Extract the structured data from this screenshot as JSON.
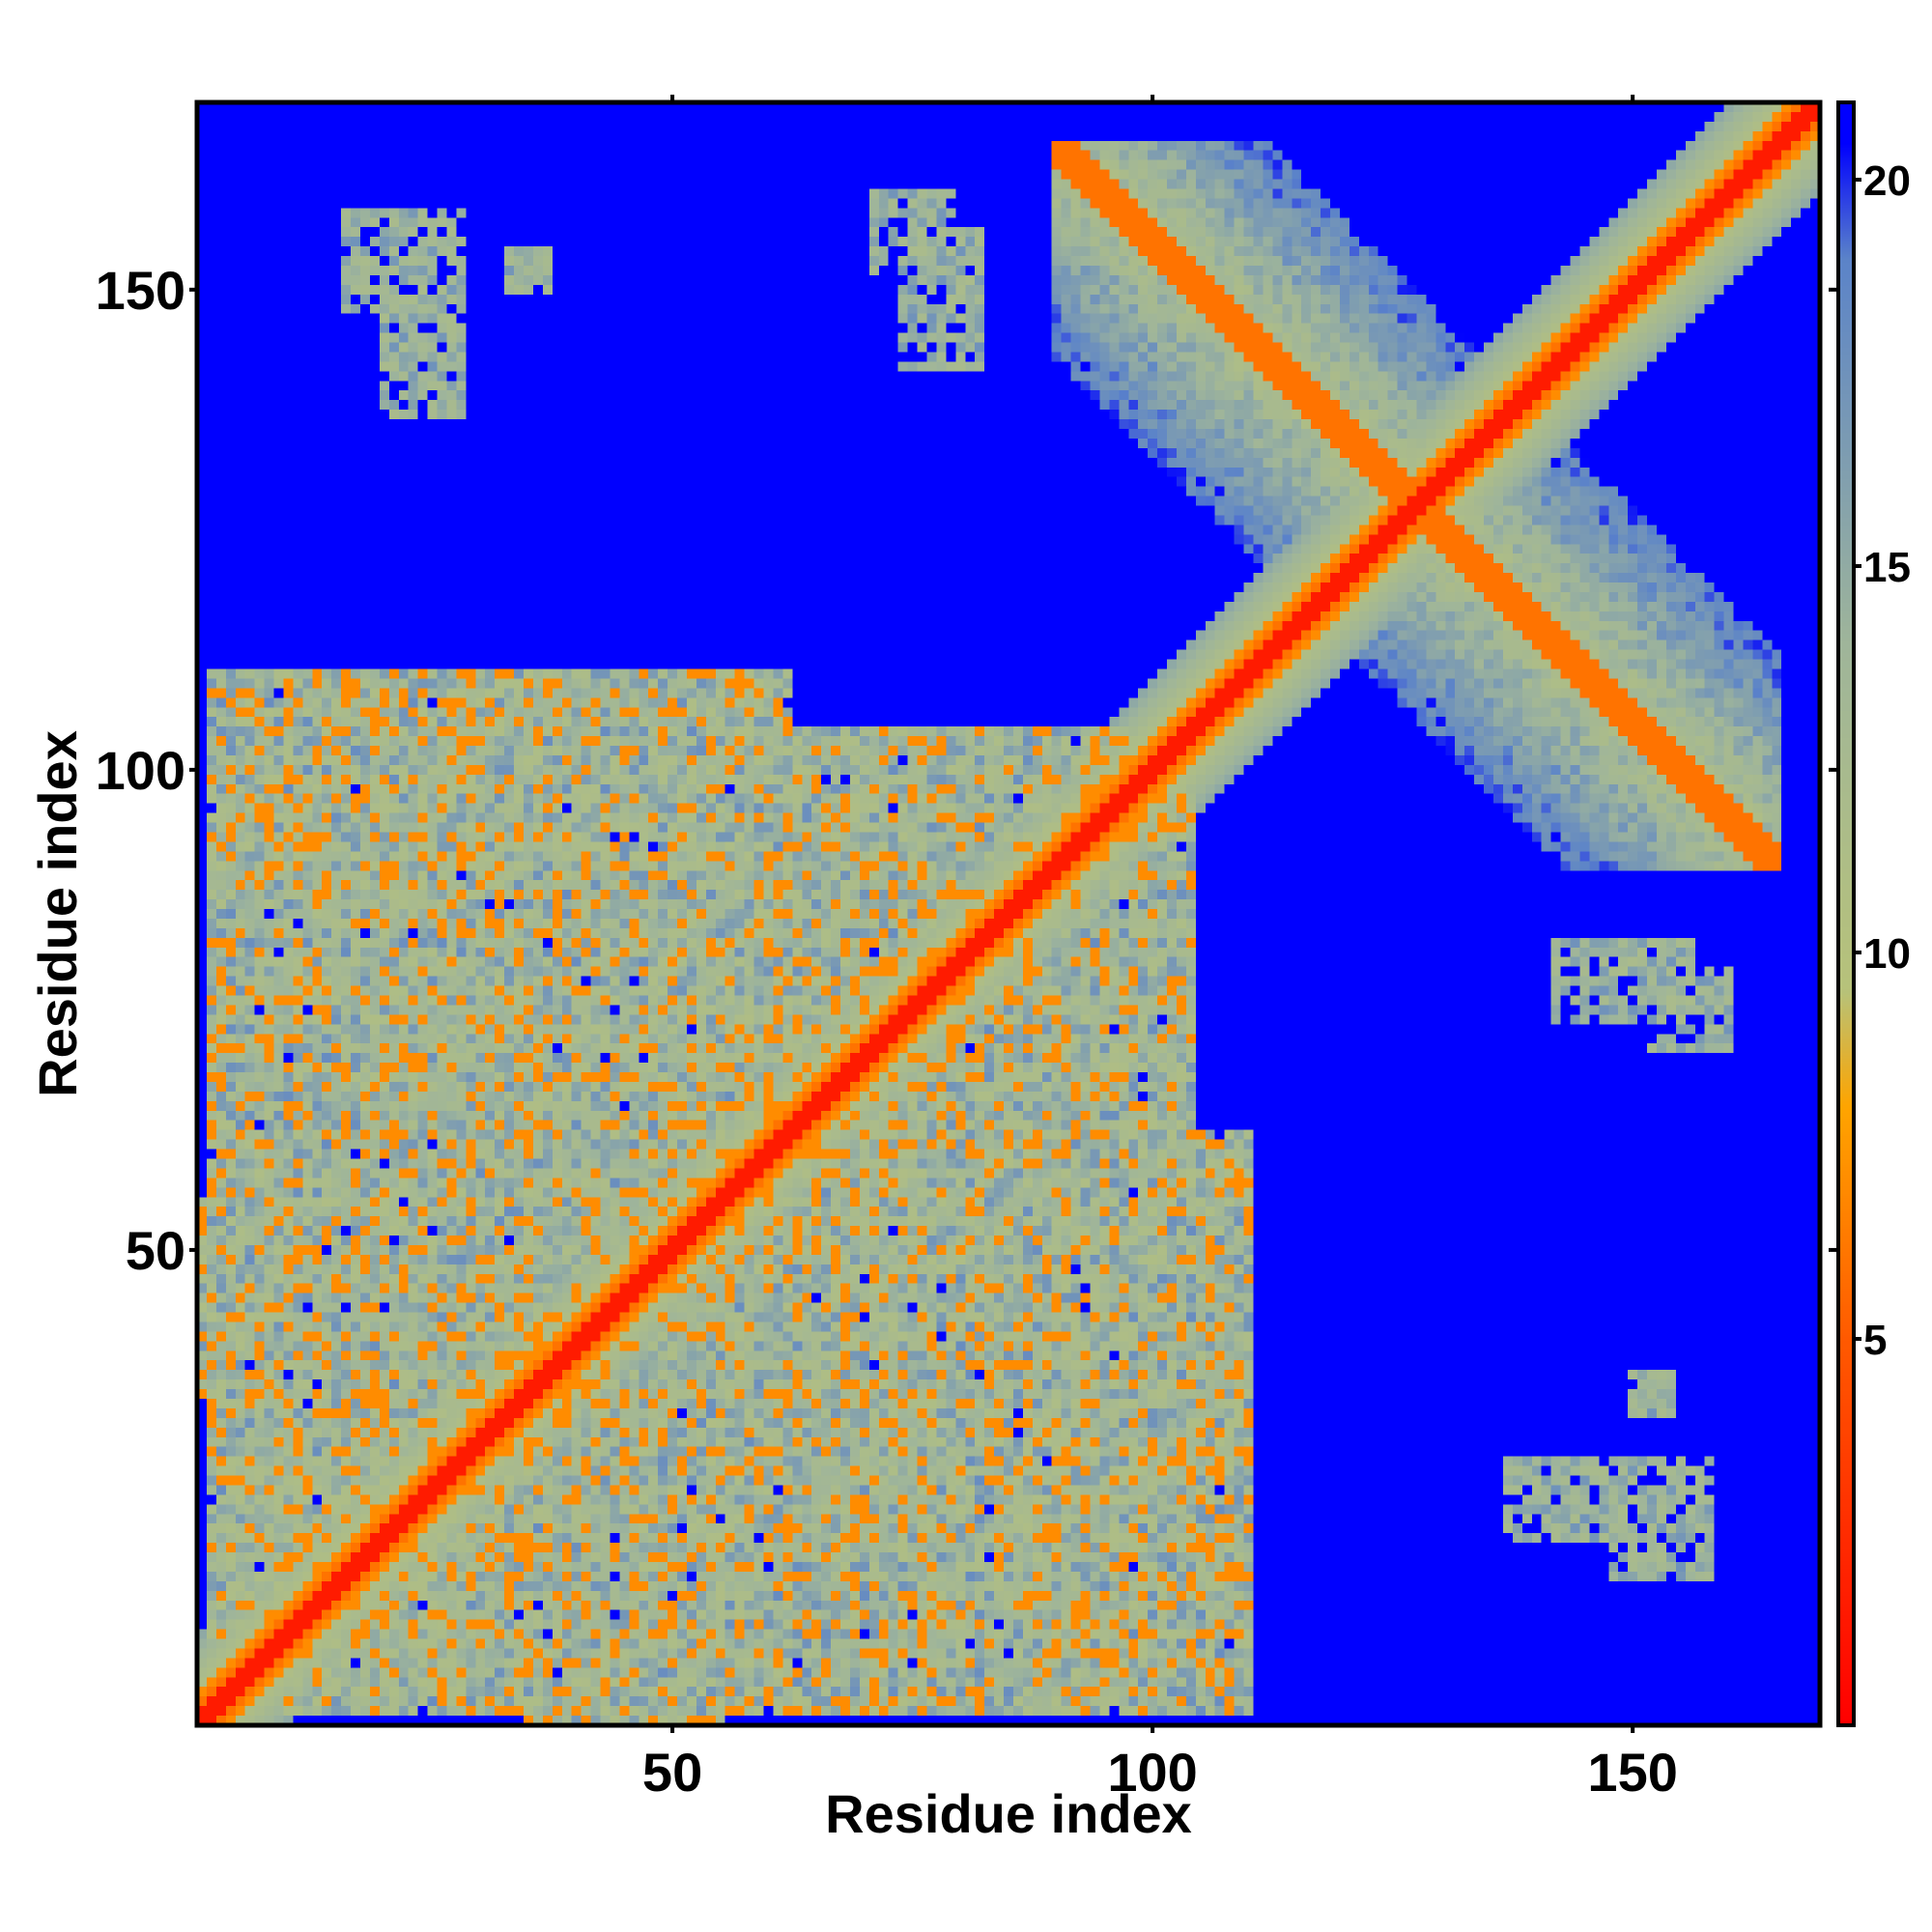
{
  "chart_data": {
    "type": "heatmap",
    "title": "",
    "xlabel": "Residue index",
    "ylabel": "Residue index",
    "n_residues": 169,
    "xlim": [
      1,
      169
    ],
    "ylim": [
      1,
      169
    ],
    "x_ticks": [
      50,
      100,
      150
    ],
    "y_ticks": [
      50,
      100,
      150
    ],
    "x_tick_labels": [
      "50",
      "100",
      "150"
    ],
    "y_tick_labels": [
      "50",
      "100",
      "150"
    ],
    "colorbar": {
      "range": [
        0,
        21
      ],
      "ticks": [
        5,
        10,
        15,
        20
      ],
      "tick_labels": [
        "5",
        "10",
        "15",
        "20"
      ],
      "colors": [
        {
          "value": 0,
          "color": "#ff0000"
        },
        {
          "value": 5,
          "color": "#ff5a00"
        },
        {
          "value": 8,
          "color": "#ffa500"
        },
        {
          "value": 9.5,
          "color": "#b7c27a"
        },
        {
          "value": 14,
          "color": "#9fb59a"
        },
        {
          "value": 19,
          "color": "#5b83c9"
        },
        {
          "value": 20.5,
          "color": "#0000ff"
        }
      ]
    },
    "background_value": 21,
    "contact_regions": [
      {
        "x": [
          1,
          169
        ],
        "y": [
          1,
          169
        ],
        "kind": "main-diagonal"
      },
      {
        "x": [
          90,
          160
        ],
        "y": [
          90,
          165
        ],
        "kind": "antiparallel-sheet"
      },
      {
        "x": [
          2,
          62
        ],
        "y": [
          2,
          110
        ],
        "kind": "n-terminal-domain"
      },
      {
        "x": [
          28,
          104
        ],
        "y": [
          2,
          98
        ],
        "kind": "central-domain"
      },
      {
        "x": [
          64,
          100
        ],
        "y": [
          38,
          100
        ],
        "kind": "mid-domain"
      },
      {
        "x": [
          16,
          28
        ],
        "y": [
          148,
          158
        ],
        "kind": "long-range-patch"
      },
      {
        "x": [
          71,
          79
        ],
        "y": [
          152,
          160
        ],
        "kind": "long-range-patch"
      },
      {
        "x": [
          142,
          156
        ],
        "y": [
          74,
          82
        ],
        "kind": "long-range-patch"
      },
      {
        "x": [
          137,
          153
        ],
        "y": [
          20,
          28
        ],
        "kind": "long-range-patch"
      },
      {
        "x": [
          150,
          154
        ],
        "y": [
          33,
          37
        ],
        "kind": "long-range-patch"
      },
      {
        "x": [
          35,
          55
        ],
        "y": [
          1,
          10
        ],
        "kind": "contact-cluster"
      }
    ]
  }
}
